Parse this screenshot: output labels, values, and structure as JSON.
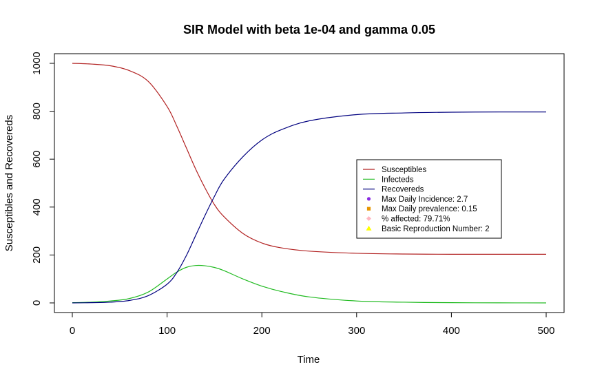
{
  "chart_data": {
    "type": "line",
    "title": "SIR Model with beta 1e-04 and gamma 0.05",
    "xlabel": "Time",
    "ylabel": "Susceptibles and Recovereds",
    "xlim": [
      0,
      500
    ],
    "ylim": [
      0,
      1000
    ],
    "x_ticks": [
      0,
      100,
      200,
      300,
      400,
      500
    ],
    "y_ticks": [
      0,
      200,
      400,
      600,
      800,
      1000
    ],
    "x_tick_labels": [
      "0",
      "100",
      "200",
      "300",
      "400",
      "500"
    ],
    "y_tick_labels": [
      "0",
      "200",
      "400",
      "600",
      "800",
      "1000"
    ],
    "grid": false,
    "legend_position": "center-right",
    "x": [
      0,
      20,
      40,
      60,
      80,
      100,
      110,
      120,
      130,
      140,
      150,
      160,
      180,
      200,
      220,
      250,
      300,
      350,
      400,
      450,
      500
    ],
    "series": [
      {
        "name": "Susceptibles",
        "color": "#b22222",
        "values": [
          1000,
          997,
          990,
          970,
          925,
          820,
          740,
          650,
          560,
          480,
          410,
          360,
          290,
          250,
          230,
          216,
          207,
          204,
          203,
          203,
          203
        ]
      },
      {
        "name": "Infecteds",
        "color": "#22bb22",
        "values": [
          1,
          3,
          8,
          18,
          45,
          100,
          128,
          148,
          156,
          155,
          148,
          135,
          100,
          70,
          48,
          25,
          8,
          3,
          1,
          0.3,
          0.1
        ]
      },
      {
        "name": "Recovereds",
        "color": "#00007f",
        "values": [
          0,
          1,
          3,
          10,
          30,
          78,
          125,
          195,
          280,
          365,
          445,
          515,
          610,
          680,
          722,
          760,
          786,
          793,
          796,
          797,
          797
        ]
      }
    ],
    "legend": {
      "lines": [
        {
          "label": "Susceptibles",
          "color": "#b22222"
        },
        {
          "label": "Infecteds",
          "color": "#22bb22"
        },
        {
          "label": "Recovereds",
          "color": "#00007f"
        }
      ],
      "points": [
        {
          "label": "Max Daily Incidence: 2.7",
          "color": "#8a2be2",
          "marker": "circle"
        },
        {
          "label": "Max Daily prevalence: 0.15",
          "color": "#e69500",
          "marker": "square"
        },
        {
          "label": "% affected: 79.71%",
          "color": "#ffb6c1",
          "marker": "diamond"
        },
        {
          "label": "Basic Reproduction Number: 2",
          "color": "#ffff00",
          "marker": "triangle"
        }
      ]
    }
  }
}
